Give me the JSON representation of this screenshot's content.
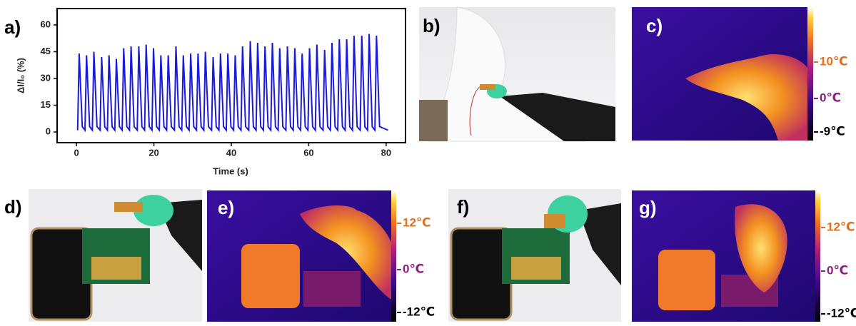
{
  "chart_data": {
    "type": "line",
    "x_label": "Time (s)",
    "y_label": "ΔI/I₀ (%)",
    "color": "#1a1adb",
    "xlim": [
      -5,
      85
    ],
    "ylim": [
      -6,
      69.2
    ],
    "xticks": [
      0,
      20,
      40,
      60,
      80
    ],
    "yticks": [
      0,
      15,
      30,
      45,
      60
    ],
    "x": [
      0.3,
      0.7,
      1.5,
      2.2,
      2.6,
      3.4,
      4.1,
      4.5,
      5.3,
      6.1,
      6.5,
      7.3,
      8.0,
      8.4,
      9.2,
      9.9,
      10.3,
      11.1,
      11.8,
      12.2,
      13.0,
      13.7,
      14.1,
      14.9,
      15.7,
      16.1,
      16.9,
      17.6,
      18.0,
      18.8,
      19.5,
      19.9,
      20.7,
      21.4,
      21.8,
      22.6,
      23.3,
      23.7,
      24.5,
      25.3,
      25.7,
      26.5,
      27.2,
      27.6,
      28.4,
      29.1,
      29.5,
      30.3,
      31.0,
      31.4,
      32.2,
      32.9,
      33.3,
      34.1,
      34.9,
      35.3,
      36.1,
      36.8,
      37.2,
      38.0,
      38.7,
      39.1,
      39.9,
      40.6,
      41.0,
      41.8,
      42.5,
      42.9,
      43.7,
      44.5,
      44.9,
      45.7,
      46.4,
      46.8,
      47.6,
      48.3,
      48.7,
      49.5,
      50.2,
      50.6,
      51.4,
      52.1,
      52.5,
      53.3,
      54.1,
      54.5,
      55.3,
      56.0,
      56.4,
      57.2,
      57.9,
      58.3,
      59.1,
      59.8,
      60.2,
      61.0,
      61.7,
      62.1,
      62.9,
      63.7,
      64.1,
      64.9,
      65.6,
      66.0,
      66.8,
      67.5,
      67.9,
      68.7,
      69.4,
      69.8,
      70.6,
      71.3,
      71.7,
      72.5,
      73.3,
      73.7,
      74.5,
      75.2,
      75.6,
      76.4,
      77.1,
      77.5,
      78.3,
      80.5
    ],
    "values": [
      1,
      44,
      3,
      1,
      43,
      3,
      1,
      45,
      3,
      1,
      42,
      3,
      1,
      43,
      3,
      1,
      41,
      3,
      1,
      47,
      3,
      1,
      48,
      3,
      1,
      48,
      3,
      1,
      49,
      3,
      1,
      47,
      3,
      1,
      43,
      3,
      1,
      43,
      3,
      1,
      48,
      3,
      1,
      43,
      3,
      1,
      44,
      3,
      1,
      44,
      3,
      1,
      45,
      3,
      1,
      42,
      3,
      1,
      44,
      3,
      1,
      44,
      3,
      1,
      43,
      3,
      1,
      48,
      3,
      1,
      51,
      3,
      1,
      50,
      3,
      1,
      48,
      3,
      1,
      50,
      3,
      1,
      47,
      3,
      1,
      48,
      3,
      1,
      47,
      3,
      1,
      44,
      3,
      1,
      47,
      3,
      1,
      49,
      3,
      1,
      46,
      3,
      1,
      50,
      3,
      1,
      52,
      3,
      1,
      52,
      3,
      1,
      54,
      3,
      1,
      54,
      3,
      1,
      55,
      3,
      1,
      54,
      3,
      1
    ]
  },
  "panels": [
    "a)",
    "b)",
    "c)",
    "d)",
    "e)",
    "f)",
    "g)"
  ],
  "colorbars": [
    [
      "10℃",
      "0℃",
      "-9℃"
    ],
    [
      "12℃",
      "0℃",
      "-12℃"
    ],
    [
      "12℃",
      "0℃",
      "-12℃"
    ]
  ]
}
